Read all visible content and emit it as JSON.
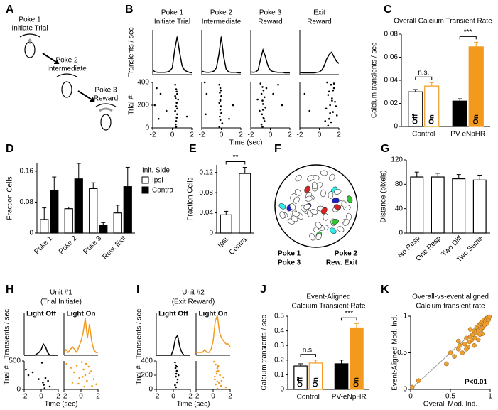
{
  "panel_labels": [
    "A",
    "B",
    "C",
    "D",
    "E",
    "F",
    "G",
    "H",
    "I",
    "J",
    "K"
  ],
  "diagram": {
    "steps": [
      [
        "Poke 1",
        "Initiate Trial"
      ],
      [
        "Poke 2",
        "Intermediate"
      ],
      [
        "Poke 3",
        "Reward"
      ]
    ]
  },
  "chart_data": [
    {
      "type": "psth-raster",
      "ylabel_top": "Transients / sec",
      "ylabel_bottom": "Trial #",
      "xlabel": "Time (sec)",
      "x": [
        -2,
        -1.75,
        -1.5,
        -1.25,
        -1,
        -0.75,
        -0.5,
        -0.25,
        0,
        0.25,
        0.5,
        0.75,
        1,
        1.25,
        1.5,
        1.75,
        2
      ],
      "xlim": [
        -2,
        2
      ],
      "xticks": [
        -2,
        0,
        2
      ],
      "psth_ylim": [
        0,
        1
      ],
      "raster_ylim": [
        0,
        400
      ],
      "raster_yticks": [
        0,
        200,
        400
      ],
      "columns": [
        {
          "title": [
            "Poke 1",
            "Initiate Trial"
          ],
          "color": "#000000",
          "psth": [
            0.1,
            0.06,
            0.05,
            0.05,
            0.05,
            0.05,
            0.06,
            0.08,
            0.15,
            0.55,
            0.85,
            0.5,
            0.2,
            0.1,
            0.07,
            0.05,
            0.04
          ],
          "raster_x": [
            -1.6,
            -1.2,
            -1.8,
            -0.6,
            -1.4,
            0.3,
            0.4,
            0.5,
            0.35,
            0.45,
            0.4,
            0.3,
            0.5,
            0.45,
            0.4,
            0.35,
            0.6,
            0.4,
            0.5,
            0.45,
            0.3,
            1.5
          ],
          "raster_y": [
            350,
            300,
            200,
            150,
            80,
            380,
            340,
            300,
            260,
            220,
            190,
            150,
            120,
            90,
            60,
            30,
            250,
            10,
            170,
            320,
            280,
            100
          ]
        },
        {
          "title": [
            "Poke 2",
            "Intermediate"
          ],
          "color": "#000000",
          "psth": [
            0.08,
            0.06,
            0.05,
            0.05,
            0.06,
            0.08,
            0.15,
            0.45,
            0.85,
            0.4,
            0.12,
            0.06,
            0.05,
            0.05,
            0.05,
            0.04,
            0.04
          ],
          "raster_x": [
            -1.7,
            -1.5,
            -1.6,
            -0.2,
            -0.1,
            -0.15,
            0,
            -0.1,
            -0.2,
            -0.05,
            -0.1,
            0,
            -0.15,
            -0.1,
            0.1,
            -0.2,
            1.2,
            0.8,
            -0.05,
            -0.1
          ],
          "raster_y": [
            400,
            300,
            120,
            380,
            350,
            310,
            280,
            250,
            220,
            190,
            160,
            130,
            100,
            70,
            40,
            10,
            200,
            80,
            330,
            240
          ]
        },
        {
          "title": [
            "Poke 3",
            "Reward"
          ],
          "color": "#000000",
          "psth": [
            0.06,
            0.05,
            0.06,
            0.1,
            0.35,
            0.55,
            0.4,
            0.2,
            0.1,
            0.07,
            0.06,
            0.05,
            0.05,
            0.05,
            0.04,
            0.04,
            0.04
          ],
          "raster_x": [
            -1.0,
            -0.8,
            -0.7,
            -0.9,
            -0.6,
            -0.8,
            -0.75,
            -0.5,
            -1.1,
            -0.85,
            -0.7,
            -0.6,
            -0.9,
            -0.8,
            0.8,
            1.2,
            -0.4,
            -1.3,
            -0.75,
            -0.65,
            0.3
          ],
          "raster_y": [
            390,
            360,
            330,
            300,
            270,
            240,
            210,
            180,
            150,
            120,
            90,
            60,
            30,
            10,
            380,
            200,
            350,
            250,
            160,
            80,
            300
          ]
        },
        {
          "title": [
            "Exit",
            "Reward"
          ],
          "color": "#000000",
          "psth": [
            0.05,
            0.04,
            0.04,
            0.04,
            0.04,
            0.04,
            0.04,
            0.05,
            0.06,
            0.1,
            0.2,
            0.35,
            0.45,
            0.5,
            0.4,
            0.3,
            0.25
          ],
          "raster_x": [
            -1.5,
            -1.0,
            0.8,
            1.2,
            1.5,
            1.0,
            0.9,
            1.3,
            1.6,
            1.1,
            0.7,
            1.4,
            1.8,
            1.0,
            1.2,
            0.9,
            1.5,
            1.3,
            1.1,
            0.6,
            1.7,
            1.4
          ],
          "raster_y": [
            300,
            150,
            400,
            380,
            350,
            320,
            290,
            260,
            230,
            200,
            170,
            140,
            110,
            80,
            50,
            20,
            390,
            240,
            130,
            60,
            190,
            330
          ]
        }
      ]
    },
    {
      "type": "bar",
      "title": [
        "Overall Calcium Transient Rate"
      ],
      "ylabel": "Calcium transients / sec",
      "categories": [
        "Control",
        "PV-eNpHR"
      ],
      "series": [
        {
          "name": "Off",
          "edge": "#000000",
          "fill": [
            "#ffffff",
            "#000000"
          ],
          "values": [
            0.03,
            0.022
          ],
          "errors": [
            0.002,
            0.002
          ]
        },
        {
          "name": "On",
          "edge": "#f39a1e",
          "fill": [
            "#ffffff",
            "#f39a1e"
          ],
          "values": [
            0.035,
            0.069
          ],
          "errors": [
            0.003,
            0.004
          ]
        }
      ],
      "ylim": [
        0,
        0.08
      ],
      "yticks": [
        0,
        0.02,
        0.04,
        0.06,
        0.08
      ],
      "significance": [
        "n.s.",
        "***"
      ],
      "names_in_bars": true
    },
    {
      "type": "bar",
      "ylabel": "Fraction Cells",
      "categories": [
        "Poke 1",
        "Poke 2",
        "Poke 3",
        "Rew. Exit"
      ],
      "rotate_labels": true,
      "series": [
        {
          "name": "Ipsi",
          "edge": "#000000",
          "fill": "#ffffff",
          "values": [
            0.035,
            0.063,
            0.115,
            0.052
          ],
          "errors": [
            0.03,
            0.004,
            0.015,
            0.02
          ]
        },
        {
          "name": "Contra",
          "edge": "#000000",
          "fill": "#000000",
          "values": [
            0.11,
            0.14,
            0.02,
            0.12
          ],
          "errors": [
            0.035,
            0.04,
            0.007,
            0.05
          ]
        }
      ],
      "ylim": [
        0,
        0.18
      ],
      "yticks": [
        0,
        0.08,
        0.16
      ],
      "legend_title": "Init. Side"
    },
    {
      "type": "bar",
      "ylabel": "Fraction Cells",
      "categories": [
        "Ipsi.",
        "Contra."
      ],
      "rotate_labels": true,
      "series": [
        {
          "name": "Fraction Cells",
          "edge": "#000000",
          "fill": "#ffffff",
          "values": [
            0.036,
            0.118
          ],
          "errors": [
            0.007,
            0.012
          ]
        }
      ],
      "ylim": [
        0,
        0.135
      ],
      "yticks": [
        0,
        0.04,
        0.08,
        0.12
      ],
      "bracket": "**"
    },
    {
      "type": "cell-map",
      "legend": [
        {
          "name": "Poke 1",
          "color": "#1f1fc8"
        },
        {
          "name": "Poke 2",
          "color": "#2ec82e"
        },
        {
          "name": "Poke 3",
          "color": "#e02020"
        },
        {
          "name": "Rew. Exit",
          "color": "#35eaea"
        }
      ]
    },
    {
      "type": "bar",
      "ylabel": "Distance (pixels)",
      "categories": [
        "No Resp",
        "One Resp",
        "Two Diff",
        "Two Same"
      ],
      "rotate_labels": true,
      "series": [
        {
          "name": "Distance (pixels)",
          "edge": "#000000",
          "fill": "#ffffff",
          "values": [
            92,
            92,
            89,
            87
          ],
          "errors": [
            8,
            6,
            7,
            8
          ]
        }
      ],
      "ylim": [
        0,
        120
      ],
      "yticks": [
        0,
        40,
        80,
        120
      ]
    },
    {
      "type": "psth-raster",
      "title": [
        "Unit #1",
        "(Trial Initiate)"
      ],
      "ylabel_top": "Transients / sec",
      "ylabel_bottom": "Trial #",
      "xlabel": "Time (sec)",
      "x": [
        -2,
        -1.75,
        -1.5,
        -1.25,
        -1,
        -0.75,
        -0.5,
        -0.25,
        0,
        0.25,
        0.5,
        0.75,
        1,
        1.25,
        1.5,
        1.75,
        2
      ],
      "xlim": [
        -2,
        2
      ],
      "xticks": [
        -2,
        0,
        2
      ],
      "psth_ylim": [
        0,
        0.15
      ],
      "raster_ylim": [
        0,
        500
      ],
      "raster_yticks": [
        0,
        500
      ],
      "columns": [
        {
          "title": [
            "Light Off"
          ],
          "color": "#000000",
          "psth": [
            0,
            0,
            0,
            0,
            0,
            0,
            0.005,
            0.01,
            0.02,
            0.04,
            0.03,
            0.01,
            0,
            0,
            0,
            0,
            0
          ],
          "raster_x": [
            -1.8,
            -1.5,
            -1.0,
            -0.3,
            0.1,
            0.2,
            0.3,
            0.5,
            0.8,
            1.0,
            0.4
          ],
          "raster_y": [
            350,
            250,
            300,
            180,
            470,
            120,
            80,
            200,
            150,
            50,
            20
          ]
        },
        {
          "title": [
            "Light On"
          ],
          "color": "#f39a1e",
          "psth": [
            0.01,
            0.02,
            0.01,
            0.02,
            0.03,
            0.02,
            0.01,
            0.03,
            0.05,
            0.08,
            0.13,
            0.06,
            0.11,
            0.05,
            0.02,
            0.01,
            0.01
          ],
          "raster_x": [
            -1.7,
            -1.2,
            -0.8,
            -0.5,
            -0.2,
            0.1,
            0.3,
            0.5,
            0.7,
            0.9,
            1.2,
            1.5,
            1.8,
            -0.3,
            0.4,
            0.6,
            1.0,
            1.3,
            0.2,
            -1.0
          ],
          "raster_y": [
            450,
            380,
            300,
            420,
            200,
            480,
            350,
            250,
            150,
            400,
            320,
            180,
            90,
            100,
            50,
            450,
            280,
            60,
            220,
            120
          ]
        }
      ]
    },
    {
      "type": "psth-raster",
      "title": [
        "Unit #2",
        "(Exit Reward)"
      ],
      "ylabel_top": "Transients / sec",
      "ylabel_bottom": "Trial #",
      "xlabel": "Time (sec)",
      "x": [
        -2,
        -1.75,
        -1.5,
        -1.25,
        -1,
        -0.75,
        -0.5,
        -0.25,
        0,
        0.25,
        0.5,
        0.75,
        1,
        1.25,
        1.5,
        1.75,
        2
      ],
      "xlim": [
        -2,
        2
      ],
      "xticks": [
        -2,
        0,
        2
      ],
      "psth_ylim": [
        0,
        0.15
      ],
      "raster_ylim": [
        0,
        400
      ],
      "raster_yticks": [
        0,
        200,
        400
      ],
      "columns": [
        {
          "title": [
            "Light Off"
          ],
          "color": "#000000",
          "psth": [
            0,
            0,
            0,
            0,
            0,
            0,
            0,
            0,
            0.02,
            0.06,
            0.07,
            0.03,
            0.01,
            0,
            0,
            0,
            0
          ],
          "raster_x": [
            0.2,
            0.3,
            0.25,
            0.4,
            0.35,
            0.3,
            0.5,
            0.45,
            0.2,
            0.3,
            0.6,
            0.4
          ],
          "raster_y": [
            380,
            340,
            300,
            260,
            220,
            180,
            140,
            100,
            60,
            30,
            200,
            320
          ]
        },
        {
          "title": [
            "Light On"
          ],
          "color": "#f39a1e",
          "psth": [
            0.01,
            0.01,
            0.01,
            0.01,
            0.02,
            0.01,
            0.01,
            0.02,
            0.05,
            0.12,
            0.14,
            0.08,
            0.06,
            0.05,
            0.04,
            0.04,
            0.03
          ],
          "raster_x": [
            0.1,
            0.3,
            0.5,
            0.6,
            0.4,
            0.8,
            1.2,
            0.2,
            0.5,
            0.7,
            0.3,
            0.9,
            1.5,
            0.4,
            0.6,
            0.2,
            1.0,
            0.5
          ],
          "raster_y": [
            390,
            350,
            300,
            260,
            220,
            200,
            170,
            140,
            110,
            90,
            70,
            50,
            30,
            250,
            330,
            180,
            120,
            10
          ]
        }
      ]
    },
    {
      "type": "bar",
      "title": [
        "Event-Aligned",
        "Calcium Transient Rate"
      ],
      "ylabel": "Calcium transients / sec",
      "categories": [
        "Control",
        "PV-eNpHR"
      ],
      "series": [
        {
          "name": "Off",
          "edge": "#000000",
          "fill": [
            "#ffffff",
            "#000000"
          ],
          "values": [
            0.16,
            0.175
          ],
          "errors": [
            0.015,
            0.025
          ]
        },
        {
          "name": "On",
          "edge": "#f39a1e",
          "fill": [
            "#ffffff",
            "#f39a1e"
          ],
          "values": [
            0.18,
            0.42
          ],
          "errors": [
            0.02,
            0.03
          ]
        }
      ],
      "ylim": [
        0,
        0.5
      ],
      "yticks": [
        0,
        0.1,
        0.2,
        0.3,
        0.4,
        0.5
      ],
      "significance": [
        "n.s.",
        "***"
      ],
      "names_in_bars": true
    },
    {
      "type": "scatter",
      "title": [
        "Overall-vs-event aligned",
        "Calcium transient rate"
      ],
      "xlabel": "Overall Mod. Ind.",
      "ylabel": "Event-Aligned Mod. Ind.",
      "annotation": "P<0.01",
      "color": "#f0a030",
      "diagonal": true,
      "xlim": [
        0,
        1
      ],
      "ylim": [
        0,
        1
      ],
      "xticks": [
        0,
        0.5,
        1
      ],
      "yticks": [
        0,
        0.5,
        1
      ],
      "x": [
        0.02,
        0.1,
        0.45,
        0.5,
        0.55,
        0.6,
        0.62,
        0.65,
        0.68,
        0.7,
        0.72,
        0.74,
        0.75,
        0.77,
        0.78,
        0.8,
        0.81,
        0.82,
        0.83,
        0.85,
        0.86,
        0.87,
        0.88,
        0.89,
        0.9,
        0.91,
        0.92,
        0.93,
        0.94,
        0.95,
        0.96,
        0.97,
        0.98,
        0.99,
        0.7,
        0.8,
        0.85,
        0.9,
        0.6,
        0.75
      ],
      "y": [
        0.03,
        0.12,
        0.35,
        0.5,
        0.45,
        0.55,
        0.6,
        0.5,
        0.62,
        0.7,
        0.58,
        0.65,
        0.72,
        0.68,
        0.75,
        0.8,
        0.7,
        0.78,
        0.85,
        0.8,
        0.88,
        0.75,
        0.9,
        0.82,
        0.92,
        0.85,
        0.95,
        0.88,
        0.93,
        0.97,
        0.9,
        0.98,
        0.95,
        0.99,
        0.55,
        0.6,
        0.68,
        0.76,
        0.66,
        0.82
      ]
    }
  ]
}
